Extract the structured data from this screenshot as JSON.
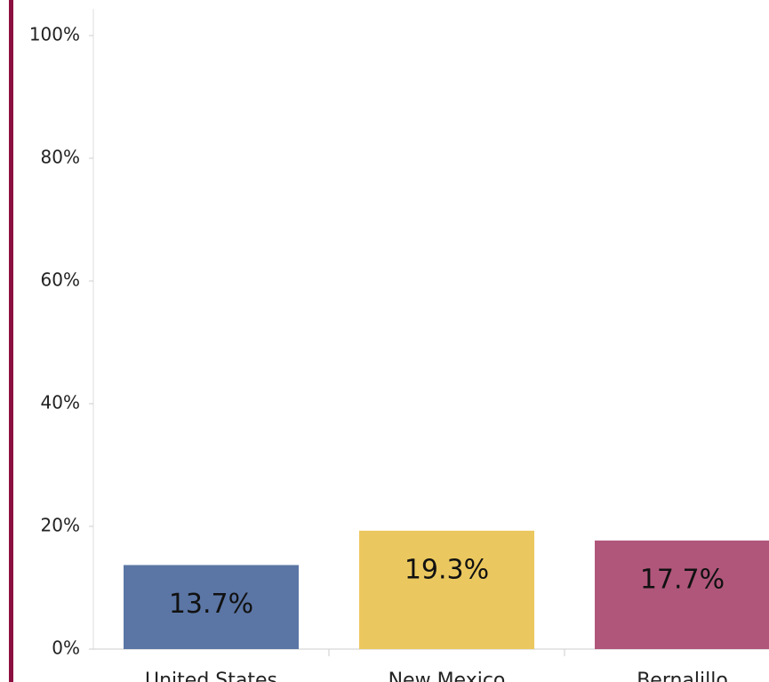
{
  "chart_data": {
    "type": "bar",
    "categories": [
      "United States",
      "New Mexico",
      "Bernalillo"
    ],
    "values": [
      13.7,
      19.3,
      17.7
    ],
    "value_labels": [
      "13.7%",
      "19.3%",
      "17.7%"
    ],
    "colors": [
      "#5b76a5",
      "#ebc85f",
      "#b0567a"
    ],
    "ylim": [
      0,
      100
    ],
    "yticks": [
      {
        "value": 0,
        "label": "0%"
      },
      {
        "value": 20,
        "label": "20%"
      },
      {
        "value": 40,
        "label": "40%"
      },
      {
        "value": 60,
        "label": "60%"
      },
      {
        "value": 80,
        "label": "80%"
      },
      {
        "value": 100,
        "label": "100%"
      }
    ],
    "grid": false
  }
}
